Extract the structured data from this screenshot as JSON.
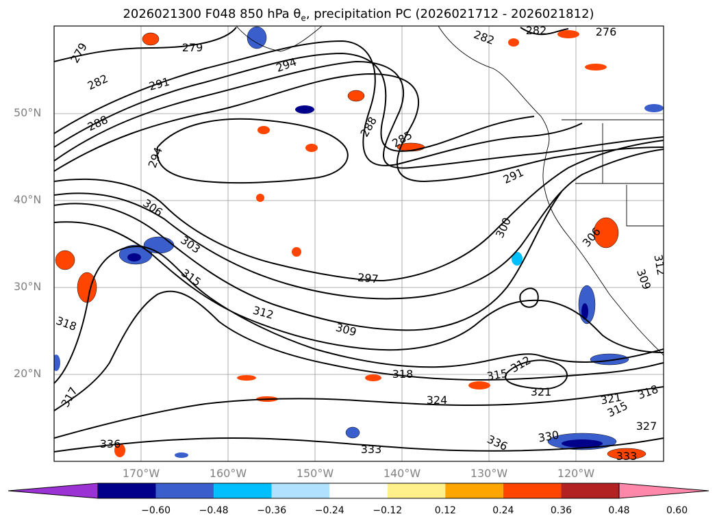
{
  "title": {
    "prefix": "2026021300 F048 850 hPa ",
    "theta": "θ",
    "sub": "e",
    "suffix": ", precipitation PC (2026021712 - 2026021812)"
  },
  "map": {
    "lat_labels": [
      "50°N",
      "40°N",
      "30°N",
      "20°N"
    ],
    "lon_labels": [
      "170°W",
      "160°W",
      "150°W",
      "140°W",
      "130°W",
      "120°W"
    ],
    "contour_labels": [
      "279",
      "282",
      "288",
      "291",
      "294",
      "294",
      "279",
      "282",
      "276",
      "282",
      "285",
      "288",
      "291",
      "300",
      "306",
      "303",
      "315",
      "312",
      "309",
      "297",
      "318",
      "318",
      "315",
      "312",
      "321",
      "321",
      "318",
      "315",
      "324",
      "327",
      "330",
      "336",
      "333",
      "336",
      "333",
      "317",
      "306",
      "309",
      "312"
    ]
  },
  "colorbar": {
    "colors": [
      "#9b32d4",
      "#00008b",
      "#3a5fcd",
      "#00bfff",
      "#b0e2ff",
      "#ffffff",
      "#fff08c",
      "#ffa500",
      "#ff4500",
      "#b22222",
      "#ff88aa"
    ],
    "labels": [
      "−0.60",
      "−0.48",
      "−0.36",
      "−0.24",
      "−0.12",
      "0.12",
      "0.24",
      "0.36",
      "0.48",
      "0.60"
    ]
  }
}
